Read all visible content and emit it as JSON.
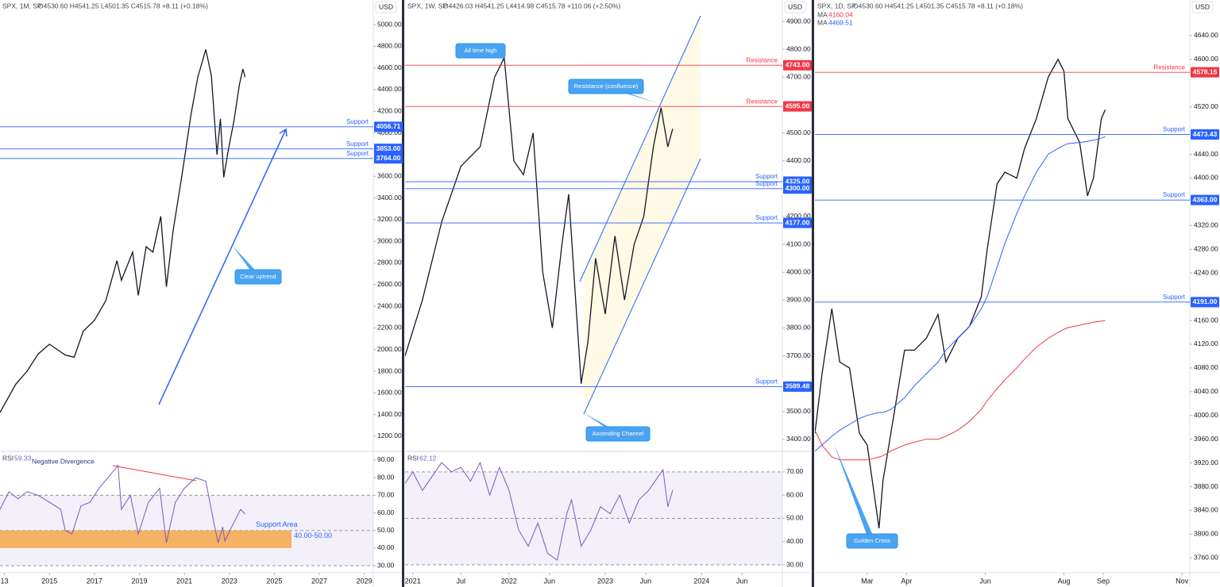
{
  "chart_data": [
    {
      "type": "line",
      "title": "SPX, 1M, SP",
      "ohlc": "O4530.60 H4541.25 L4501.35 C4515.78 +8.11 (+0.18%)",
      "currency": "USD",
      "x": [
        2012.8,
        2013.5,
        2014,
        2014.5,
        2015,
        2015.7,
        2016.1,
        2016.5,
        2017,
        2017.5,
        2018,
        2018.2,
        2018.7,
        2018.95,
        2019.3,
        2019.6,
        2019.95,
        2020.2,
        2020.5,
        2020.9,
        2021.3,
        2021.6,
        2021.95,
        2022.2,
        2022.45,
        2022.6,
        2022.75,
        2022.95,
        2023.2,
        2023.45,
        2023.6,
        2023.7
      ],
      "series": [
        {
          "color": "#131722",
          "values": [
            1420,
            1680,
            1800,
            1960,
            2050,
            1950,
            1930,
            2170,
            2270,
            2450,
            2820,
            2640,
            2900,
            2500,
            2950,
            2900,
            3230,
            2580,
            3100,
            3620,
            4180,
            4520,
            4770,
            4530,
            3800,
            4130,
            3590,
            3840,
            4110,
            4450,
            4590,
            4515
          ]
        }
      ],
      "xlim": [
        2012.8,
        2029.4
      ],
      "ylim": [
        1068,
        5227
      ],
      "yticks": [
        {
          "value": 1200,
          "label": "1200.00"
        },
        {
          "value": 1400,
          "label": "1400.00"
        },
        {
          "value": 1600,
          "label": "1600.00"
        },
        {
          "value": 1800,
          "label": "1800.00"
        },
        {
          "value": 2000,
          "label": "2000.00"
        },
        {
          "value": 2200,
          "label": "2200.00"
        },
        {
          "value": 2400,
          "label": "2400.00"
        },
        {
          "value": 2600,
          "label": "2600.00"
        },
        {
          "value": 2800,
          "label": "2800.00"
        },
        {
          "value": 3000,
          "label": "3000.00"
        },
        {
          "value": 3200,
          "label": "3200.00"
        },
        {
          "value": 3400,
          "label": "3400.00"
        },
        {
          "value": 3600,
          "label": "3600.00"
        },
        {
          "value": 4000,
          "label": "4000.00"
        },
        {
          "value": 4200,
          "label": "4200.00"
        },
        {
          "value": 4400,
          "label": "4400.00"
        },
        {
          "value": 4600,
          "label": "4600.00"
        },
        {
          "value": 4800,
          "label": "4800.00"
        },
        {
          "value": 5000,
          "label": "5000.00"
        }
      ],
      "levels": {
        "names": [
          "Support",
          "Support",
          "Support"
        ],
        "values": [
          4056.71,
          3853,
          3764
        ],
        "value_labels": [
          "4056.71",
          "3853.00",
          "3764.00"
        ],
        "colors": [
          "#2962ff",
          "#2962ff",
          "#2962ff"
        ]
      },
      "annotations": [
        "Clear uptrend"
      ]
    },
    {
      "type": "line",
      "title": "RSI",
      "x": [
        2012.8,
        2013.2,
        2013.6,
        2014,
        2014.5,
        2015,
        2015.5,
        2015.7,
        2016,
        2016.4,
        2016.8,
        2017.2,
        2017.6,
        2018.05,
        2018.2,
        2018.6,
        2018.95,
        2019.4,
        2019.9,
        2020.2,
        2020.6,
        2021,
        2021.5,
        2021.95,
        2022.3,
        2022.5,
        2022.7,
        2022.8,
        2023.1,
        2023.5,
        2023.7
      ],
      "series": [
        {
          "color": "#7e57c2",
          "values": [
            62,
            72,
            68,
            72,
            70,
            66,
            62,
            50,
            48,
            64,
            66,
            74,
            80,
            87,
            62,
            70,
            48,
            66,
            74,
            43,
            66,
            74,
            80,
            78,
            55,
            43,
            52,
            44,
            52,
            62,
            59.33
          ]
        }
      ],
      "xlim": [
        2012.8,
        2029.4
      ],
      "ylim": [
        26,
        94.5
      ],
      "yticks": [
        {
          "value": 30,
          "label": "30.00"
        },
        {
          "value": 40,
          "label": "40.00"
        },
        {
          "value": 50,
          "label": "50.00"
        },
        {
          "value": 60,
          "label": "60.00"
        },
        {
          "value": 70,
          "label": "70.00"
        },
        {
          "value": 80,
          "label": "80.00"
        },
        {
          "value": 90,
          "label": "90.00"
        }
      ],
      "xticks": [
        {
          "value": 2013,
          "label": "13"
        },
        2015,
        2017,
        2019,
        2021,
        2023,
        2025,
        2027,
        2029
      ],
      "guides": [
        70,
        50,
        30
      ],
      "band": {
        "label": "Support Area",
        "range_label": "40.00-50.00",
        "range": [
          40,
          50
        ],
        "color": "#f5a748"
      },
      "annotations": [
        "Negative Divergence"
      ]
    },
    {
      "type": "line",
      "title": "SPX, 1W, SP",
      "ohlc": "O4426.03 H4541.25 L4414.98 C4515.78 +110.06 (+2.50%)",
      "currency": "USD",
      "x": [
        2020.92,
        2021.1,
        2021.3,
        2021.5,
        2021.7,
        2021.85,
        2021.95,
        2022.05,
        2022.15,
        2022.25,
        2022.35,
        2022.45,
        2022.55,
        2022.62,
        2022.75,
        2022.82,
        2022.9,
        2023.0,
        2023.1,
        2023.2,
        2023.3,
        2023.4,
        2023.5,
        2023.58,
        2023.65,
        2023.7
      ],
      "series": [
        {
          "color": "#131722",
          "values": [
            3700,
            3900,
            4180,
            4380,
            4450,
            4700,
            4770,
            4400,
            4350,
            4500,
            4000,
            3800,
            4100,
            4280,
            3600,
            3750,
            4050,
            3850,
            4130,
            3900,
            4100,
            4200,
            4450,
            4590,
            4450,
            4515
          ]
        }
      ],
      "xlim": [
        2020.92,
        2024.84
      ],
      "ylim": [
        3360,
        4977
      ],
      "yticks": [
        {
          "value": 3400,
          "label": "3400.00"
        },
        {
          "value": 3500,
          "label": "3500.00"
        },
        {
          "value": 3700,
          "label": "3700.00"
        },
        {
          "value": 3800,
          "label": "3800.00"
        },
        {
          "value": 3900,
          "label": "3900.00"
        },
        {
          "value": 4000,
          "label": "4000.00"
        },
        {
          "value": 4100,
          "label": "4100.00"
        },
        {
          "value": 4200,
          "label": "4200.00"
        },
        {
          "value": 4400,
          "label": "4400.00"
        },
        {
          "value": 4500,
          "label": "4500.00"
        },
        {
          "value": 4700,
          "label": "4700.00"
        },
        {
          "value": 4800,
          "label": "4800.00"
        },
        {
          "value": 4900,
          "label": "4900.00"
        }
      ],
      "levels": {
        "names": [
          "Resistance",
          "Resistance",
          "Support",
          "Support",
          "Support",
          "Support"
        ],
        "values": [
          4743,
          4595,
          4325,
          4300,
          4177,
          3589.48
        ],
        "value_labels": [
          "4743.00",
          "4595.00",
          "4325.00",
          "4300.00",
          "4177.00",
          "3589.48"
        ],
        "colors": [
          "#f23645",
          "#f23645",
          "#2962ff",
          "#2962ff",
          "#2962ff",
          "#2962ff"
        ]
      },
      "annotations": [
        "All time high",
        "Resistance (confluence)",
        "Ascending Channel"
      ]
    },
    {
      "type": "line",
      "title": "RSI",
      "x": [
        2020.92,
        2021.0,
        2021.1,
        2021.2,
        2021.3,
        2021.4,
        2021.5,
        2021.6,
        2021.7,
        2021.8,
        2021.9,
        2022.0,
        2022.1,
        2022.2,
        2022.3,
        2022.4,
        2022.5,
        2022.6,
        2022.65,
        2022.75,
        2022.85,
        2022.95,
        2023.05,
        2023.15,
        2023.25,
        2023.35,
        2023.45,
        2023.55,
        2023.6,
        2023.65,
        2023.7
      ],
      "series": [
        {
          "color": "#7e57c2",
          "values": [
            65,
            70,
            62,
            68,
            74,
            70,
            72,
            66,
            74,
            60,
            72,
            62,
            45,
            38,
            48,
            35,
            32,
            52,
            58,
            38,
            45,
            55,
            52,
            60,
            48,
            58,
            62,
            68,
            71,
            55,
            62.12
          ]
        }
      ],
      "xlim": [
        2020.92,
        2024.84
      ],
      "ylim": [
        26.6,
        78.5
      ],
      "yticks": [
        {
          "value": 30,
          "label": "30.00"
        },
        {
          "value": 40,
          "label": "40.00"
        },
        {
          "value": 50,
          "label": "50.00"
        },
        {
          "value": 60,
          "label": "60.00"
        },
        {
          "value": 70,
          "label": "70.00"
        }
      ],
      "xticks": [
        2021,
        {
          "value": 2021.5,
          "label": "Jul"
        },
        2022,
        {
          "value": 2022.42,
          "label": "Jun"
        },
        2023,
        {
          "value": 2023.42,
          "label": "Jun"
        },
        2024,
        {
          "value": 2024.42,
          "label": "Jun"
        }
      ],
      "guides": [
        70,
        50,
        30
      ]
    },
    {
      "type": "line",
      "title": "SPX, 1D, SP",
      "ohlc": "O4530.60 H4541.25 L4501.35 C4515.78 +8.11 (+0.18%)",
      "currency": "USD",
      "x": [
        1.67,
        1.85,
        2.1,
        2.3,
        2.55,
        2.8,
        3.0,
        3.3,
        3.4,
        3.6,
        3.95,
        4.2,
        4.5,
        4.8,
        5.0,
        5.3,
        5.6,
        5.9,
        6.05,
        6.3,
        6.5,
        6.8,
        7.0,
        7.3,
        7.6,
        7.85,
        8.0,
        8.1,
        8.4,
        8.6,
        8.75,
        8.95,
        9.05
      ],
      "series": [
        {
          "color": "#131722",
          "values": [
            3970,
            4070,
            4180,
            4090,
            4080,
            3970,
            3950,
            3810,
            3890,
            3970,
            4110,
            4110,
            4130,
            4170,
            4090,
            4130,
            4150,
            4200,
            4280,
            4390,
            4410,
            4400,
            4450,
            4500,
            4570,
            4600,
            4580,
            4500,
            4460,
            4370,
            4400,
            4500,
            4515
          ]
        },
        {
          "name": "MA",
          "color": "#f23645",
          "values": [
            3975,
            3950,
            3930,
            3925,
            3925,
            3925,
            3925,
            3930,
            3932,
            3940,
            3950,
            3955,
            3960,
            3960,
            3965,
            3975,
            3990,
            4010,
            4025,
            4045,
            4060,
            4080,
            4095,
            4115,
            4130,
            4140,
            4145,
            4148,
            4152,
            4155,
            4157,
            4159,
            4160.04
          ]
        },
        {
          "name": "MA",
          "color": "#2962ff",
          "values": [
            3940,
            3950,
            3965,
            3975,
            3985,
            3995,
            4000,
            4005,
            4005,
            4010,
            4030,
            4050,
            4070,
            4090,
            4110,
            4130,
            4150,
            4180,
            4200,
            4250,
            4290,
            4340,
            4370,
            4410,
            4440,
            4450,
            4455,
            4458,
            4460,
            4462,
            4464,
            4467,
            4469.51
          ]
        }
      ],
      "xlim": [
        1.67,
        11.2
      ],
      "ylim": [
        3735,
        4700
      ],
      "yticks": [
        {
          "value": 3760,
          "label": "3760.00"
        },
        {
          "value": 3800,
          "label": "3800.00"
        },
        {
          "value": 3840,
          "label": "3840.00"
        },
        {
          "value": 3880,
          "label": "3880.00"
        },
        {
          "value": 3920,
          "label": "3920.00"
        },
        {
          "value": 3960,
          "label": "3960.00"
        },
        {
          "value": 4000,
          "label": "4000.00"
        },
        {
          "value": 4040,
          "label": "4040.00"
        },
        {
          "value": 4080,
          "label": "4080.00"
        },
        {
          "value": 4120,
          "label": "4120.00"
        },
        {
          "value": 4160,
          "label": "4160.00"
        },
        {
          "value": 4240,
          "label": "4240.00"
        },
        {
          "value": 4280,
          "label": "4280.00"
        },
        {
          "value": 4320,
          "label": "4320.00"
        },
        {
          "value": 4400,
          "label": "4400.00"
        },
        {
          "value": 4440,
          "label": "4440.00"
        },
        {
          "value": 4520,
          "label": "4520.00"
        },
        {
          "value": 4600,
          "label": "4600.00"
        },
        {
          "value": 4640,
          "label": "4640.00"
        }
      ],
      "xticks": [
        {
          "value": 3,
          "label": "Mar"
        },
        {
          "value": 4,
          "label": "Apr"
        },
        {
          "value": 6,
          "label": "Jun"
        },
        {
          "value": 8,
          "label": "Aug"
        },
        {
          "value": 9,
          "label": "Sep"
        },
        {
          "value": 11,
          "label": "Nov"
        }
      ],
      "levels": {
        "names": [
          "Resistance",
          "Support",
          "Support",
          "Support"
        ],
        "values": [
          4578.15,
          4473.43,
          4363,
          4191
        ],
        "value_labels": [
          "4578.15",
          "4473.43",
          "4363.00",
          "4191.00"
        ],
        "colors": [
          "#f23645",
          "#2962ff",
          "#2962ff",
          "#2962ff"
        ]
      },
      "annotations": [
        "Golden Cross"
      ]
    }
  ]
}
